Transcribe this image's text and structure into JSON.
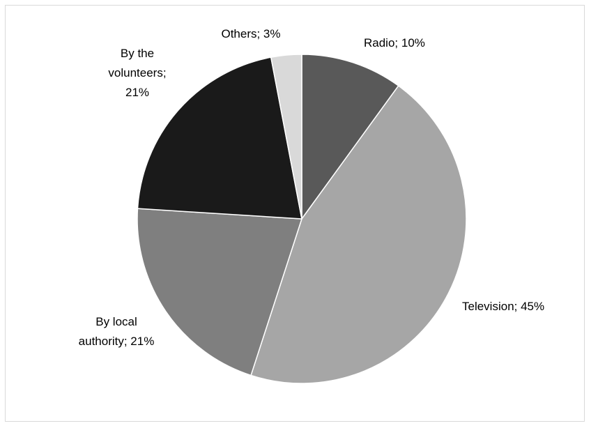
{
  "chart_data": {
    "type": "pie",
    "slices": [
      {
        "label": "Radio",
        "value": 10,
        "display": "Radio; 10%",
        "color": "#595959"
      },
      {
        "label": "Television",
        "value": 45,
        "display": "Television; 45%",
        "color": "#a6a6a6"
      },
      {
        "label": "By local authority",
        "value": 21,
        "display": "By local authority; 21%",
        "color": "#7f7f7f"
      },
      {
        "label": "By the volunteers",
        "value": 21,
        "display": "By the volunteers; 21%",
        "color": "#1a1a1a"
      },
      {
        "label": "Others",
        "value": 3,
        "display": "Others; 3%",
        "color": "#d9d9d9"
      }
    ],
    "start_position": "top (12 o'clock)",
    "direction": "clockwise",
    "legend": "none",
    "data_labels": "category; percentage"
  }
}
